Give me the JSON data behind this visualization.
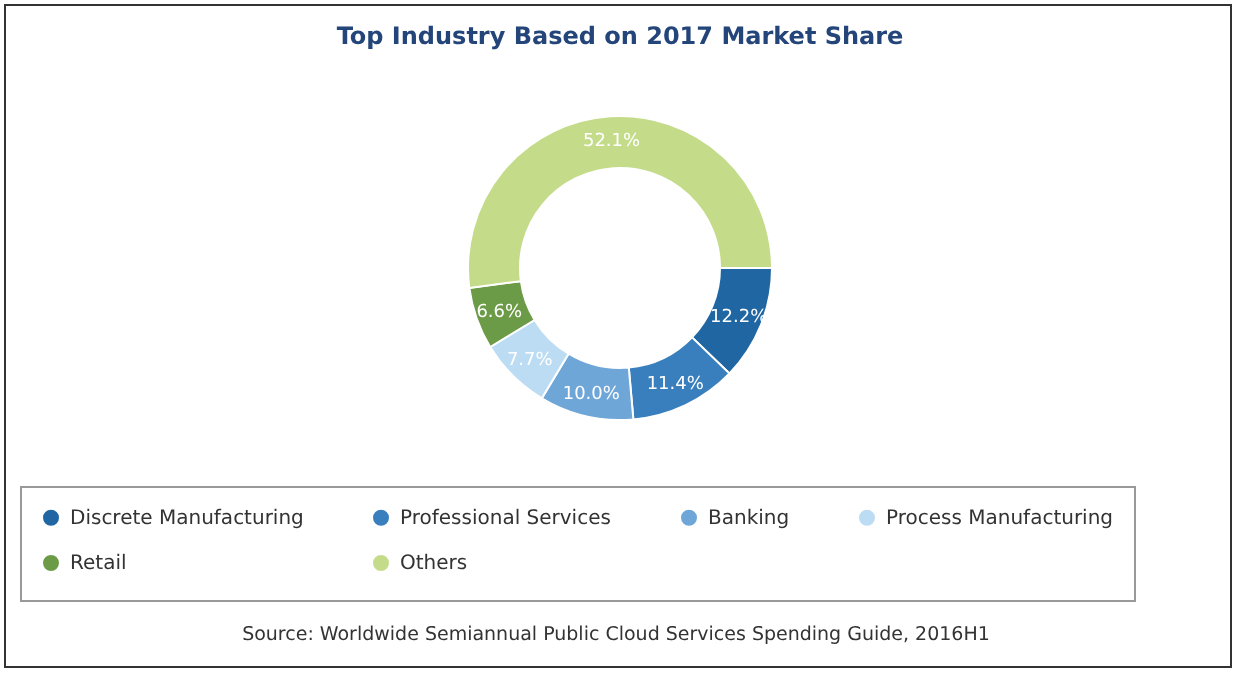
{
  "chart_data": {
    "type": "donut",
    "title": "Top Industry Based on 2017 Market Share",
    "categories": [
      "Discrete Manufacturing",
      "Professional Services",
      "Banking",
      "Process Manufacturing",
      "Retail",
      "Others"
    ],
    "values": [
      12.2,
      11.4,
      10.0,
      7.7,
      6.6,
      52.1
    ],
    "colors": [
      "#1f66a3",
      "#3a7fbd",
      "#6fa6d8",
      "#bcdcf4",
      "#6b9b46",
      "#c4dc8a"
    ],
    "value_labels": [
      "12.2%",
      "11.4%",
      "10.0%",
      "7.7%",
      "6.6%",
      "52.1%"
    ],
    "legend": "bottom",
    "annotations": [
      "Source: Worldwide Semiannual Public Cloud Services Spending Guide, 2016H1"
    ]
  }
}
